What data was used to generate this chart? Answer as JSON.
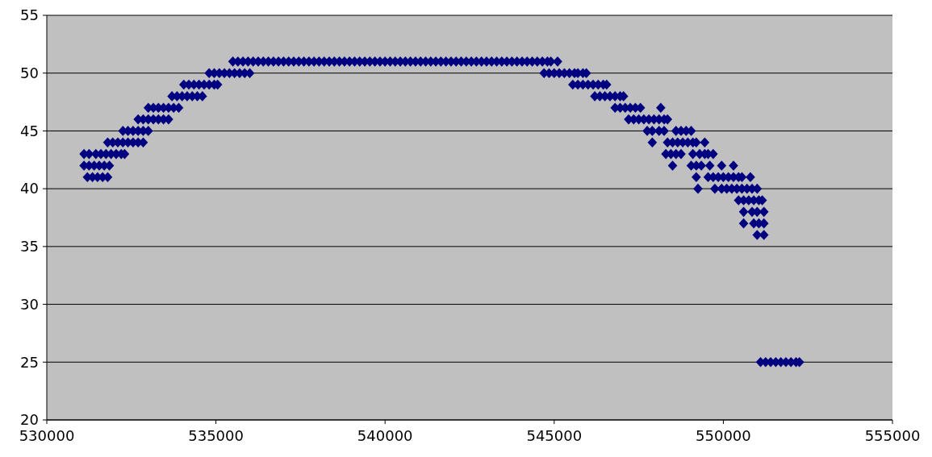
{
  "chart_data": {
    "type": "scatter",
    "marker": "diamond",
    "grid": "y",
    "xlim": [
      530000,
      555000
    ],
    "xticks": [
      530000,
      535000,
      540000,
      545000,
      550000,
      555000
    ],
    "ylim": [
      20,
      55
    ],
    "yticks": [
      20,
      25,
      30,
      35,
      40,
      45,
      50,
      55
    ],
    "series": [
      {
        "color": "#000080",
        "x": [
          531200,
          531350,
          531500,
          531650,
          531800
        ],
        "values": [
          41,
          41,
          41,
          41,
          41
        ]
      },
      {
        "color": "#000080",
        "x": [
          531100,
          531250,
          531400,
          531550,
          531700,
          531850
        ],
        "values": [
          42,
          42,
          42,
          42,
          42,
          42
        ]
      },
      {
        "color": "#000080",
        "x": [
          531100,
          531250,
          531450,
          531600,
          531750,
          531900,
          532050,
          532200,
          532300
        ],
        "values": [
          43,
          43,
          43,
          43,
          43,
          43,
          43,
          43,
          43
        ]
      },
      {
        "color": "#000080",
        "x": [
          531800,
          531950,
          532100,
          532250,
          532400,
          532550,
          532700,
          532850
        ],
        "values": [
          44,
          44,
          44,
          44,
          44,
          44,
          44,
          44
        ]
      },
      {
        "color": "#000080",
        "x": [
          532250,
          532400,
          532550,
          532700,
          532850,
          533000
        ],
        "values": [
          45,
          45,
          45,
          45,
          45,
          45
        ]
      },
      {
        "color": "#000080",
        "x": [
          532700,
          532850,
          533000,
          533150,
          533300,
          533450,
          533600
        ],
        "values": [
          46,
          46,
          46,
          46,
          46,
          46,
          46
        ]
      },
      {
        "color": "#000080",
        "x": [
          533000,
          533150,
          533300,
          533450,
          533600,
          533750,
          533900
        ],
        "values": [
          47,
          47,
          47,
          47,
          47,
          47,
          47
        ]
      },
      {
        "color": "#000080",
        "x": [
          533700,
          533850,
          534000,
          534150,
          534300,
          534450,
          534600
        ],
        "values": [
          48,
          48,
          48,
          48,
          48,
          48,
          48
        ]
      },
      {
        "color": "#000080",
        "x": [
          534050,
          534200,
          534350,
          534500,
          534650,
          534800,
          534950,
          535050
        ],
        "values": [
          49,
          49,
          49,
          49,
          49,
          49,
          49,
          49
        ]
      },
      {
        "color": "#000080",
        "x": [
          534800,
          534950,
          535100,
          535250,
          535400,
          535550,
          535700,
          535850,
          536000
        ],
        "values": [
          50,
          50,
          50,
          50,
          50,
          50,
          50,
          50,
          50
        ]
      },
      {
        "color": "#000080",
        "x": [
          535500,
          535650,
          535800,
          535950,
          536100,
          536250,
          536400,
          536550,
          536700,
          536850,
          537000,
          537150,
          537300,
          537450,
          537600,
          537750,
          537900,
          538050,
          538200,
          538350,
          538500,
          538650,
          538800,
          538950,
          539100,
          539250,
          539400,
          539550,
          539700,
          539850,
          540000,
          540150,
          540300,
          540450,
          540600,
          540750,
          540900,
          541050,
          541200,
          541350,
          541500,
          541650,
          541800,
          541950,
          542100,
          542250,
          542400,
          542550,
          542700,
          542850,
          543000,
          543150,
          543300,
          543450,
          543600,
          543750,
          543900,
          544050,
          544200,
          544350,
          544500,
          544650,
          544800,
          544900,
          545100
        ],
        "values": [
          51,
          51,
          51,
          51,
          51,
          51,
          51,
          51,
          51,
          51,
          51,
          51,
          51,
          51,
          51,
          51,
          51,
          51,
          51,
          51,
          51,
          51,
          51,
          51,
          51,
          51,
          51,
          51,
          51,
          51,
          51,
          51,
          51,
          51,
          51,
          51,
          51,
          51,
          51,
          51,
          51,
          51,
          51,
          51,
          51,
          51,
          51,
          51,
          51,
          51,
          51,
          51,
          51,
          51,
          51,
          51,
          51,
          51,
          51,
          51,
          51,
          51,
          51,
          51,
          51
        ]
      },
      {
        "color": "#000080",
        "x": [
          544700,
          544850,
          545000,
          545150,
          545300,
          545450,
          545600,
          545700,
          545850,
          545950
        ],
        "values": [
          50,
          50,
          50,
          50,
          50,
          50,
          50,
          50,
          50,
          50
        ]
      },
      {
        "color": "#000080",
        "x": [
          545550,
          545700,
          545850,
          546000,
          546150,
          546300,
          546450,
          546550
        ],
        "values": [
          49,
          49,
          49,
          49,
          49,
          49,
          49,
          49
        ]
      },
      {
        "color": "#000080",
        "x": [
          546200,
          546350,
          546500,
          546650,
          546800,
          546950,
          547050
        ],
        "values": [
          48,
          48,
          48,
          48,
          48,
          48,
          48
        ]
      },
      {
        "color": "#000080",
        "x": [
          546800,
          546950,
          547100,
          547250,
          547400,
          547550,
          548150
        ],
        "values": [
          47,
          47,
          47,
          47,
          47,
          47,
          47
        ]
      },
      {
        "color": "#000080",
        "x": [
          547200,
          547350,
          547500,
          547650,
          547800,
          547950,
          548100,
          548250,
          548350
        ],
        "values": [
          46,
          46,
          46,
          46,
          46,
          46,
          46,
          46,
          46
        ]
      },
      {
        "color": "#000080",
        "x": [
          547750,
          547900,
          548100,
          548250,
          548600,
          548750,
          548900,
          549050
        ],
        "values": [
          45,
          45,
          45,
          45,
          45,
          45,
          45,
          45
        ]
      },
      {
        "color": "#000080",
        "x": [
          547900,
          548350,
          548500,
          548650,
          548800,
          548950,
          549100,
          549200,
          549450
        ],
        "values": [
          44,
          44,
          44,
          44,
          44,
          44,
          44,
          44,
          44
        ]
      },
      {
        "color": "#000080",
        "x": [
          548300,
          548450,
          548600,
          548750,
          549100,
          549300,
          549450,
          549550,
          549700
        ],
        "values": [
          43,
          43,
          43,
          43,
          43,
          43,
          43,
          43,
          43
        ]
      },
      {
        "color": "#000080",
        "x": [
          548500,
          549050,
          549200,
          549350,
          549600,
          549950,
          550300
        ],
        "values": [
          42,
          42,
          42,
          42,
          42,
          42,
          42
        ]
      },
      {
        "color": "#000080",
        "x": [
          549200,
          549550,
          549700,
          549850,
          550000,
          550150,
          550300,
          550450,
          550550,
          550800
        ],
        "values": [
          41,
          41,
          41,
          41,
          41,
          41,
          41,
          41,
          41,
          41
        ]
      },
      {
        "color": "#000080",
        "x": [
          549250,
          549750,
          549950,
          550100,
          550250,
          550400,
          550550,
          550700,
          550850,
          551000
        ],
        "values": [
          40,
          40,
          40,
          40,
          40,
          40,
          40,
          40,
          40,
          40
        ]
      },
      {
        "color": "#000080",
        "x": [
          550450,
          550600,
          550750,
          550900,
          551050,
          551150
        ],
        "values": [
          39,
          39,
          39,
          39,
          39,
          39
        ]
      },
      {
        "color": "#000080",
        "x": [
          550600,
          550850,
          551000,
          551200
        ],
        "values": [
          38,
          38,
          38,
          38
        ]
      },
      {
        "color": "#000080",
        "x": [
          550600,
          550900,
          551050,
          551200
        ],
        "values": [
          37,
          37,
          37,
          37
        ]
      },
      {
        "color": "#000080",
        "x": [
          551000,
          551200
        ],
        "values": [
          36,
          36
        ]
      },
      {
        "color": "#000080",
        "x": [
          551100,
          551250,
          551400,
          551550,
          551700,
          551850,
          552000,
          552150,
          552250
        ],
        "values": [
          25,
          25,
          25,
          25,
          25,
          25,
          25,
          25,
          25
        ]
      }
    ]
  }
}
